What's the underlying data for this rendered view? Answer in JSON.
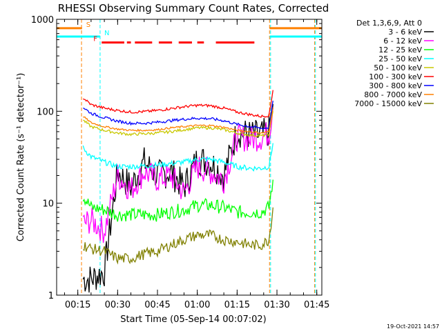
{
  "chart_data": {
    "type": "line",
    "title": "RHESSI Observing Summary Count Rates, Corrected",
    "xlabel": "Start Time (05-Sep-14 00:07:02)",
    "ylabel": "Corrected Count Rate (s⁻¹ detector⁻¹)",
    "y_scale": "log",
    "ylim": [
      1,
      1000
    ],
    "xlim_minutes": [
      7.03,
      106.9
    ],
    "x_tick_labels": [
      "00:15",
      "00:30",
      "00:45",
      "01:00",
      "01:15",
      "01:30",
      "01:45"
    ],
    "x_tick_minutes": [
      15,
      30,
      45,
      60,
      75,
      90,
      105
    ],
    "y_tick_labels": [
      "1",
      "10",
      "100",
      "1000"
    ],
    "y_tick_values": [
      1,
      10,
      100,
      1000
    ],
    "legend_title": "Det 1,3,6,9, Att 0",
    "legend_position": "right",
    "flag_bars": {
      "S": {
        "label": "S",
        "color": "#ff8000",
        "minutes": [
          [
            7.03,
            16.6
          ],
          [
            87.2,
            106.9
          ]
        ],
        "level": 800
      },
      "N": {
        "label": "N",
        "color": "#00ffff",
        "minutes": [
          [
            7.03,
            23.4
          ],
          [
            87.3,
            106.9
          ]
        ],
        "level": 650
      },
      "F": {
        "label": "F",
        "color": "#ff0000",
        "minutes": [
          [
            24.0,
            32.5
          ],
          [
            33.5,
            35.0
          ],
          [
            36.5,
            43.0
          ],
          [
            45.5,
            50.5
          ],
          [
            53.0,
            58.0
          ],
          [
            60.0,
            62.5
          ],
          [
            67.0,
            81.5
          ]
        ],
        "level": 560
      }
    },
    "vertical_lines": [
      {
        "minute": 16.4,
        "color": "#ff8000"
      },
      {
        "minute": 23.4,
        "color": "#00ffff"
      },
      {
        "minute": 87.2,
        "color": "#ff8000"
      },
      {
        "minute": 87.6,
        "color": "#00ffff"
      },
      {
        "minute": 104.2,
        "color": "#ff8000"
      },
      {
        "minute": 104.5,
        "color": "#00ffff"
      }
    ],
    "x": [
      17,
      20,
      25,
      30,
      35,
      40,
      45,
      50,
      55,
      60,
      65,
      70,
      75,
      80,
      84,
      87,
      88.5
    ],
    "series": [
      {
        "name": "3 - 6 keV",
        "color": "#000000",
        "values": [
          1.5,
          1.5,
          1.8,
          22,
          15,
          28,
          20,
          22,
          15,
          30,
          28,
          20,
          60,
          55,
          55,
          60,
          120
        ]
      },
      {
        "name": "6 - 12 keV",
        "color": "#ff00ff",
        "values": [
          6,
          6.5,
          5,
          20,
          14,
          22,
          18,
          20,
          13,
          25,
          22,
          18,
          52,
          50,
          52,
          58,
          110
        ]
      },
      {
        "name": "12 - 25 keV",
        "color": "#00ff00",
        "values": [
          12,
          9,
          8.5,
          7.5,
          7.5,
          7.5,
          7.5,
          8,
          8.5,
          9.5,
          9.5,
          9,
          8,
          8,
          8,
          9,
          18
        ]
      },
      {
        "name": "25 - 50 keV",
        "color": "#00ffff",
        "values": [
          40,
          32,
          28,
          25,
          25,
          25.5,
          26,
          27,
          28,
          30,
          30,
          28,
          25,
          24,
          24,
          25,
          45
        ]
      },
      {
        "name": "50 - 100 keV",
        "color": "#c8c800",
        "values": [
          80,
          68,
          62,
          58,
          56,
          57,
          58,
          60,
          63,
          66,
          66,
          63,
          58,
          55,
          54,
          56,
          100
        ]
      },
      {
        "name": "100 - 300 keV",
        "color": "#ff0000",
        "values": [
          140,
          118,
          108,
          102,
          98,
          99,
          102,
          107,
          112,
          116,
          115,
          108,
          98,
          92,
          88,
          90,
          170
        ]
      },
      {
        "name": "300 - 800 keV",
        "color": "#0000ff",
        "values": [
          110,
          95,
          85,
          78,
          74,
          74,
          76,
          79,
          82,
          84,
          83,
          79,
          72,
          68,
          65,
          66,
          130
        ]
      },
      {
        "name": "800 - 7000 keV",
        "color": "#ff8000",
        "values": [
          88,
          75,
          68,
          64,
          62,
          62,
          63,
          66,
          68,
          70,
          70,
          67,
          62,
          60,
          58,
          60,
          110
        ]
      },
      {
        "name": "7000 - 15000 keV",
        "color": "#808000",
        "values": [
          3.5,
          3.2,
          3.0,
          2.5,
          2.5,
          2.8,
          3.0,
          3.5,
          4.0,
          4.5,
          4.5,
          4.0,
          3.8,
          3.5,
          3.5,
          4.0,
          9
        ]
      }
    ]
  },
  "footer": {
    "timestamp": "19-Oct-2021 14:57"
  }
}
